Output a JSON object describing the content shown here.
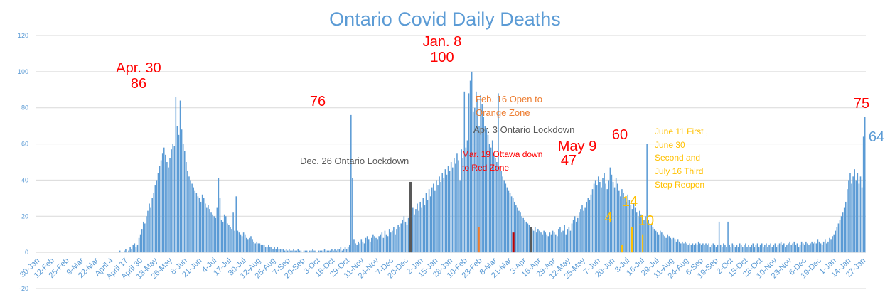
{
  "chart_data": {
    "type": "bar",
    "title": "Ontario Covid Daily Deaths",
    "xlabel": "",
    "ylabel": "",
    "ylim": [
      -20,
      120
    ],
    "yticks": [
      -20,
      0,
      20,
      40,
      60,
      80,
      100,
      120
    ],
    "grid": true,
    "x_start": "30-Jan",
    "x_end": "27-Jan",
    "x_tick_labels": [
      "30-Jan",
      "12-Feb",
      "25-Feb",
      "9-Mar",
      "22-Mar",
      "April 4",
      "April 17",
      "April 30",
      "13-May",
      "26-May",
      "8-Jun",
      "21-Jun",
      "4-Jul",
      "17-Jul",
      "30-Jul",
      "12-Aug",
      "25-Aug",
      "7-Sep",
      "20-Sep",
      "3-Oct",
      "16-Oct",
      "29-Oct",
      "11-Nov",
      "24-Nov",
      "7-Dec",
      "20-Dec",
      "2-Jan",
      "15-Jan",
      "28-Jan",
      "10-Feb",
      "23-Feb",
      "8-Mar",
      "21-Mar",
      "3-Apr",
      "16-Apr",
      "29-Apr",
      "12-May",
      "25-May",
      "7-Jun",
      "20-Jun",
      "3-Jul",
      "16-Jul",
      "29-Jul",
      "11-Aug",
      "24-Aug",
      "6-Sep",
      "19-Sep",
      "2-Oct",
      "15-Oct",
      "28-Oct",
      "10-Nov",
      "23-Nov",
      "6-Dec",
      "19-Dec",
      "1-Jan",
      "14-Jan",
      "27-Jan"
    ],
    "bar_color": "#5b9bd5",
    "series": [
      {
        "values": [
          0,
          0,
          0,
          0,
          0,
          0,
          0,
          0,
          0,
          0,
          0,
          0,
          0,
          0,
          0,
          0,
          0,
          0,
          0,
          0,
          0,
          0,
          0,
          0,
          0,
          0,
          0,
          0,
          0,
          0,
          0,
          0,
          0,
          0,
          0,
          0,
          0,
          0,
          0,
          0,
          0,
          0,
          0,
          0,
          0,
          0,
          0,
          0,
          0,
          0,
          0,
          0,
          0,
          0,
          1,
          0,
          0,
          1,
          2,
          0,
          1,
          3,
          2,
          4,
          5,
          3,
          4,
          8,
          10,
          13,
          17,
          16,
          20,
          23,
          27,
          25,
          30,
          33,
          37,
          40,
          44,
          48,
          51,
          55,
          58,
          54,
          50,
          47,
          52,
          57,
          60,
          59,
          86,
          70,
          65,
          84,
          68,
          60,
          56,
          50,
          45,
          42,
          40,
          38,
          36,
          34,
          33,
          31,
          30,
          28,
          32,
          30,
          27,
          25,
          26,
          24,
          22,
          21,
          20,
          19,
          25,
          41,
          30,
          18,
          17,
          21,
          20,
          16,
          15,
          14,
          13,
          22,
          12,
          31,
          12,
          11,
          10,
          9,
          11,
          10,
          8,
          7,
          8,
          9,
          7,
          6,
          5,
          6,
          5,
          5,
          4,
          4,
          4,
          3,
          3,
          4,
          3,
          3,
          2,
          3,
          2,
          3,
          2,
          2,
          2,
          2,
          1,
          2,
          1,
          2,
          1,
          1,
          2,
          1,
          1,
          2,
          1,
          1,
          0,
          1,
          1,
          1,
          0,
          1,
          1,
          2,
          1,
          1,
          0,
          1,
          1,
          1,
          1,
          2,
          1,
          1,
          1,
          1,
          2,
          1,
          2,
          1,
          2,
          2,
          3,
          1,
          2,
          3,
          2,
          3,
          4,
          76,
          41,
          7,
          5,
          4,
          6,
          5,
          7,
          6,
          5,
          8,
          9,
          7,
          6,
          8,
          10,
          9,
          8,
          7,
          9,
          10,
          11,
          8,
          12,
          10,
          9,
          13,
          11,
          12,
          14,
          10,
          13,
          15,
          14,
          16,
          18,
          20,
          17,
          15,
          19,
          22,
          20,
          25,
          21,
          24,
          27,
          23,
          28,
          25,
          30,
          26,
          33,
          29,
          35,
          31,
          36,
          38,
          34,
          40,
          37,
          42,
          39,
          44,
          41,
          46,
          43,
          48,
          45,
          50,
          47,
          52,
          49,
          55,
          51,
          40,
          57,
          52,
          89,
          58,
          62,
          88,
          95,
          100,
          78,
          80,
          89,
          85,
          70,
          87,
          82,
          75,
          70,
          68,
          65,
          60,
          58,
          62,
          55,
          52,
          50,
          88,
          48,
          45,
          42,
          40,
          38,
          36,
          34,
          33,
          31,
          30,
          28,
          26,
          25,
          23,
          22,
          20,
          19,
          18,
          17,
          16,
          15,
          14,
          13,
          12,
          14,
          11,
          13,
          12,
          11,
          10,
          12,
          11,
          10,
          9,
          11,
          10,
          12,
          11,
          10,
          9,
          13,
          14,
          11,
          12,
          15,
          10,
          13,
          14,
          12,
          16,
          18,
          20,
          17,
          19,
          22,
          24,
          26,
          23,
          25,
          28,
          30,
          29,
          32,
          35,
          38,
          40,
          37,
          42,
          39,
          36,
          41,
          44,
          38,
          35,
          40,
          47,
          43,
          39,
          36,
          41,
          38,
          34,
          31,
          35,
          33,
          30,
          28,
          32,
          29,
          26,
          24,
          27,
          25,
          22,
          20,
          23,
          21,
          19,
          18,
          20,
          60,
          18,
          16,
          15,
          14,
          13,
          12,
          11,
          10,
          12,
          11,
          10,
          9,
          8,
          10,
          9,
          8,
          7,
          8,
          7,
          6,
          7,
          6,
          5,
          6,
          5,
          6,
          5,
          4,
          5,
          4,
          5,
          4,
          5,
          4,
          6,
          5,
          4,
          5,
          4,
          5,
          4,
          5,
          3,
          4,
          5,
          4,
          3,
          4,
          17,
          4,
          3,
          5,
          4,
          3,
          17,
          4,
          3,
          5,
          4,
          3,
          4,
          3,
          5,
          4,
          3,
          4,
          5,
          3,
          4,
          3,
          4,
          5,
          3,
          4,
          5,
          3,
          4,
          5,
          3,
          4,
          5,
          3,
          4,
          5,
          3,
          4,
          5,
          3,
          4,
          5,
          6,
          4,
          5,
          3,
          4,
          5,
          6,
          4,
          5,
          6,
          4,
          5,
          3,
          4,
          6,
          5,
          4,
          6,
          5,
          4,
          5,
          6,
          5,
          6,
          5,
          7,
          6,
          5,
          4,
          6,
          7,
          5,
          6,
          8,
          7,
          9,
          10,
          12,
          14,
          16,
          18,
          20,
          22,
          25,
          28,
          35,
          40,
          44,
          38,
          42,
          46,
          40,
          44,
          38,
          42,
          36,
          64,
          75
        ]
      }
    ],
    "highlights": [
      {
        "label": "Dec. 26 Ontario Lockdown",
        "color": "#595959"
      },
      {
        "label": "Feb. 16 Open to Orange Zone",
        "color": "#ed7d31"
      },
      {
        "label": "Mar. 19 Ottawa down to Red Zone",
        "color": "#c00000"
      },
      {
        "label": "Apr. 3 Ontario Lockdown",
        "color": "#595959"
      },
      {
        "label": "June 11 First , June 30 Second and July 16 Third Step Reopen",
        "color": "#ffc000"
      }
    ],
    "annotations": [
      {
        "text": "Apr. 30",
        "color": "#ff0000"
      },
      {
        "text": "86",
        "color": "#ff0000"
      },
      {
        "text": "76",
        "color": "#ff0000"
      },
      {
        "text": "Jan. 8",
        "color": "#ff0000"
      },
      {
        "text": "100",
        "color": "#ff0000"
      },
      {
        "text": "Dec. 26 Ontario Lockdown",
        "color": "#595959"
      },
      {
        "text": "Feb. 16 Open to",
        "color": "#ed7d31"
      },
      {
        "text": "Orange Zone",
        "color": "#ed7d31"
      },
      {
        "text": "Apr. 3 Ontario Lockdown",
        "color": "#595959"
      },
      {
        "text": "Mar. 19 Ottawa down",
        "color": "#ff0000"
      },
      {
        "text": "to Red Zone",
        "color": "#ff0000"
      },
      {
        "text": "May 9",
        "color": "#ff0000"
      },
      {
        "text": "47",
        "color": "#ff0000"
      },
      {
        "text": "60",
        "color": "#ff0000"
      },
      {
        "text": "June 11 First ,",
        "color": "#ffc000"
      },
      {
        "text": "June 30",
        "color": "#ffc000"
      },
      {
        "text": "Second and",
        "color": "#ffc000"
      },
      {
        "text": "July 16 Third",
        "color": "#ffc000"
      },
      {
        "text": "Step Reopen",
        "color": "#ffc000"
      },
      {
        "text": "4",
        "color": "#ffc000"
      },
      {
        "text": "14",
        "color": "#ffc000"
      },
      {
        "text": "10",
        "color": "#ffc000"
      },
      {
        "text": "75",
        "color": "#ff0000"
      },
      {
        "text": "64",
        "color": "#5b9bd5"
      }
    ],
    "title_color": "#5b9bd5",
    "axis_label_color": "#5b9bd5"
  }
}
